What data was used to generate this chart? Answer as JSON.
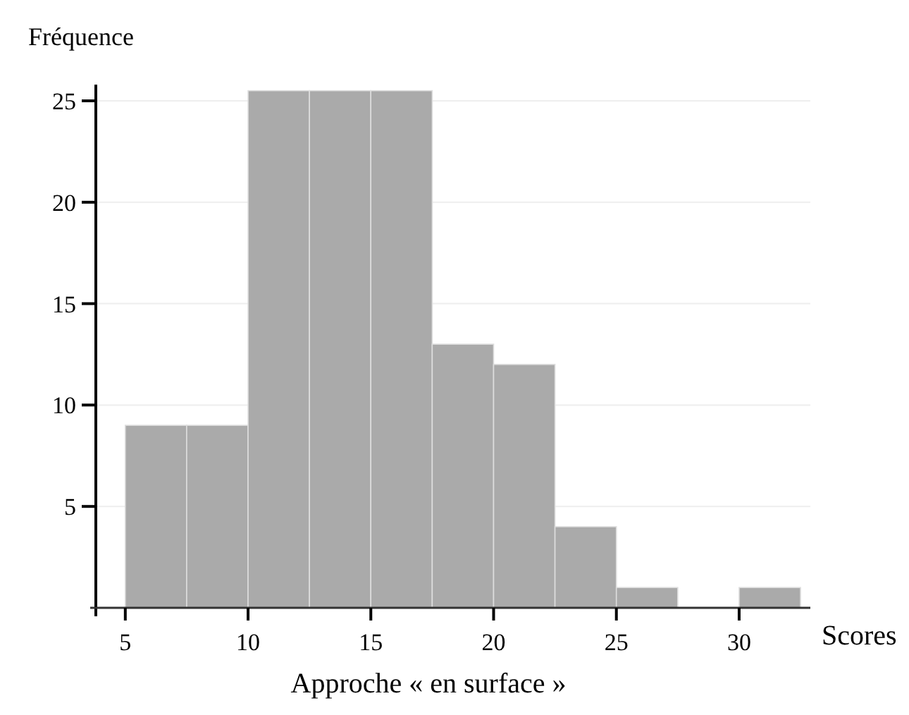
{
  "chart_data": {
    "type": "histogram",
    "title": "Approche « en surface »",
    "xlabel": "Scores",
    "ylabel": "Fréquence",
    "bins": [
      5,
      7.5,
      10,
      12.5,
      15,
      17.5,
      20,
      22.5,
      25,
      27.5,
      30,
      32.5
    ],
    "values": [
      9,
      9,
      25.5,
      25.5,
      25.5,
      13,
      12,
      4,
      1,
      0,
      1
    ],
    "color": "#aaaaaa",
    "xlim": [
      3.8,
      32.9
    ],
    "ylim": [
      0,
      25.8
    ],
    "xticks": [
      5,
      10,
      15,
      20,
      25,
      30
    ],
    "yticks": [
      {
        "value": 0,
        "label": null
      },
      5,
      10,
      15,
      20,
      25
    ],
    "grid": "y"
  }
}
